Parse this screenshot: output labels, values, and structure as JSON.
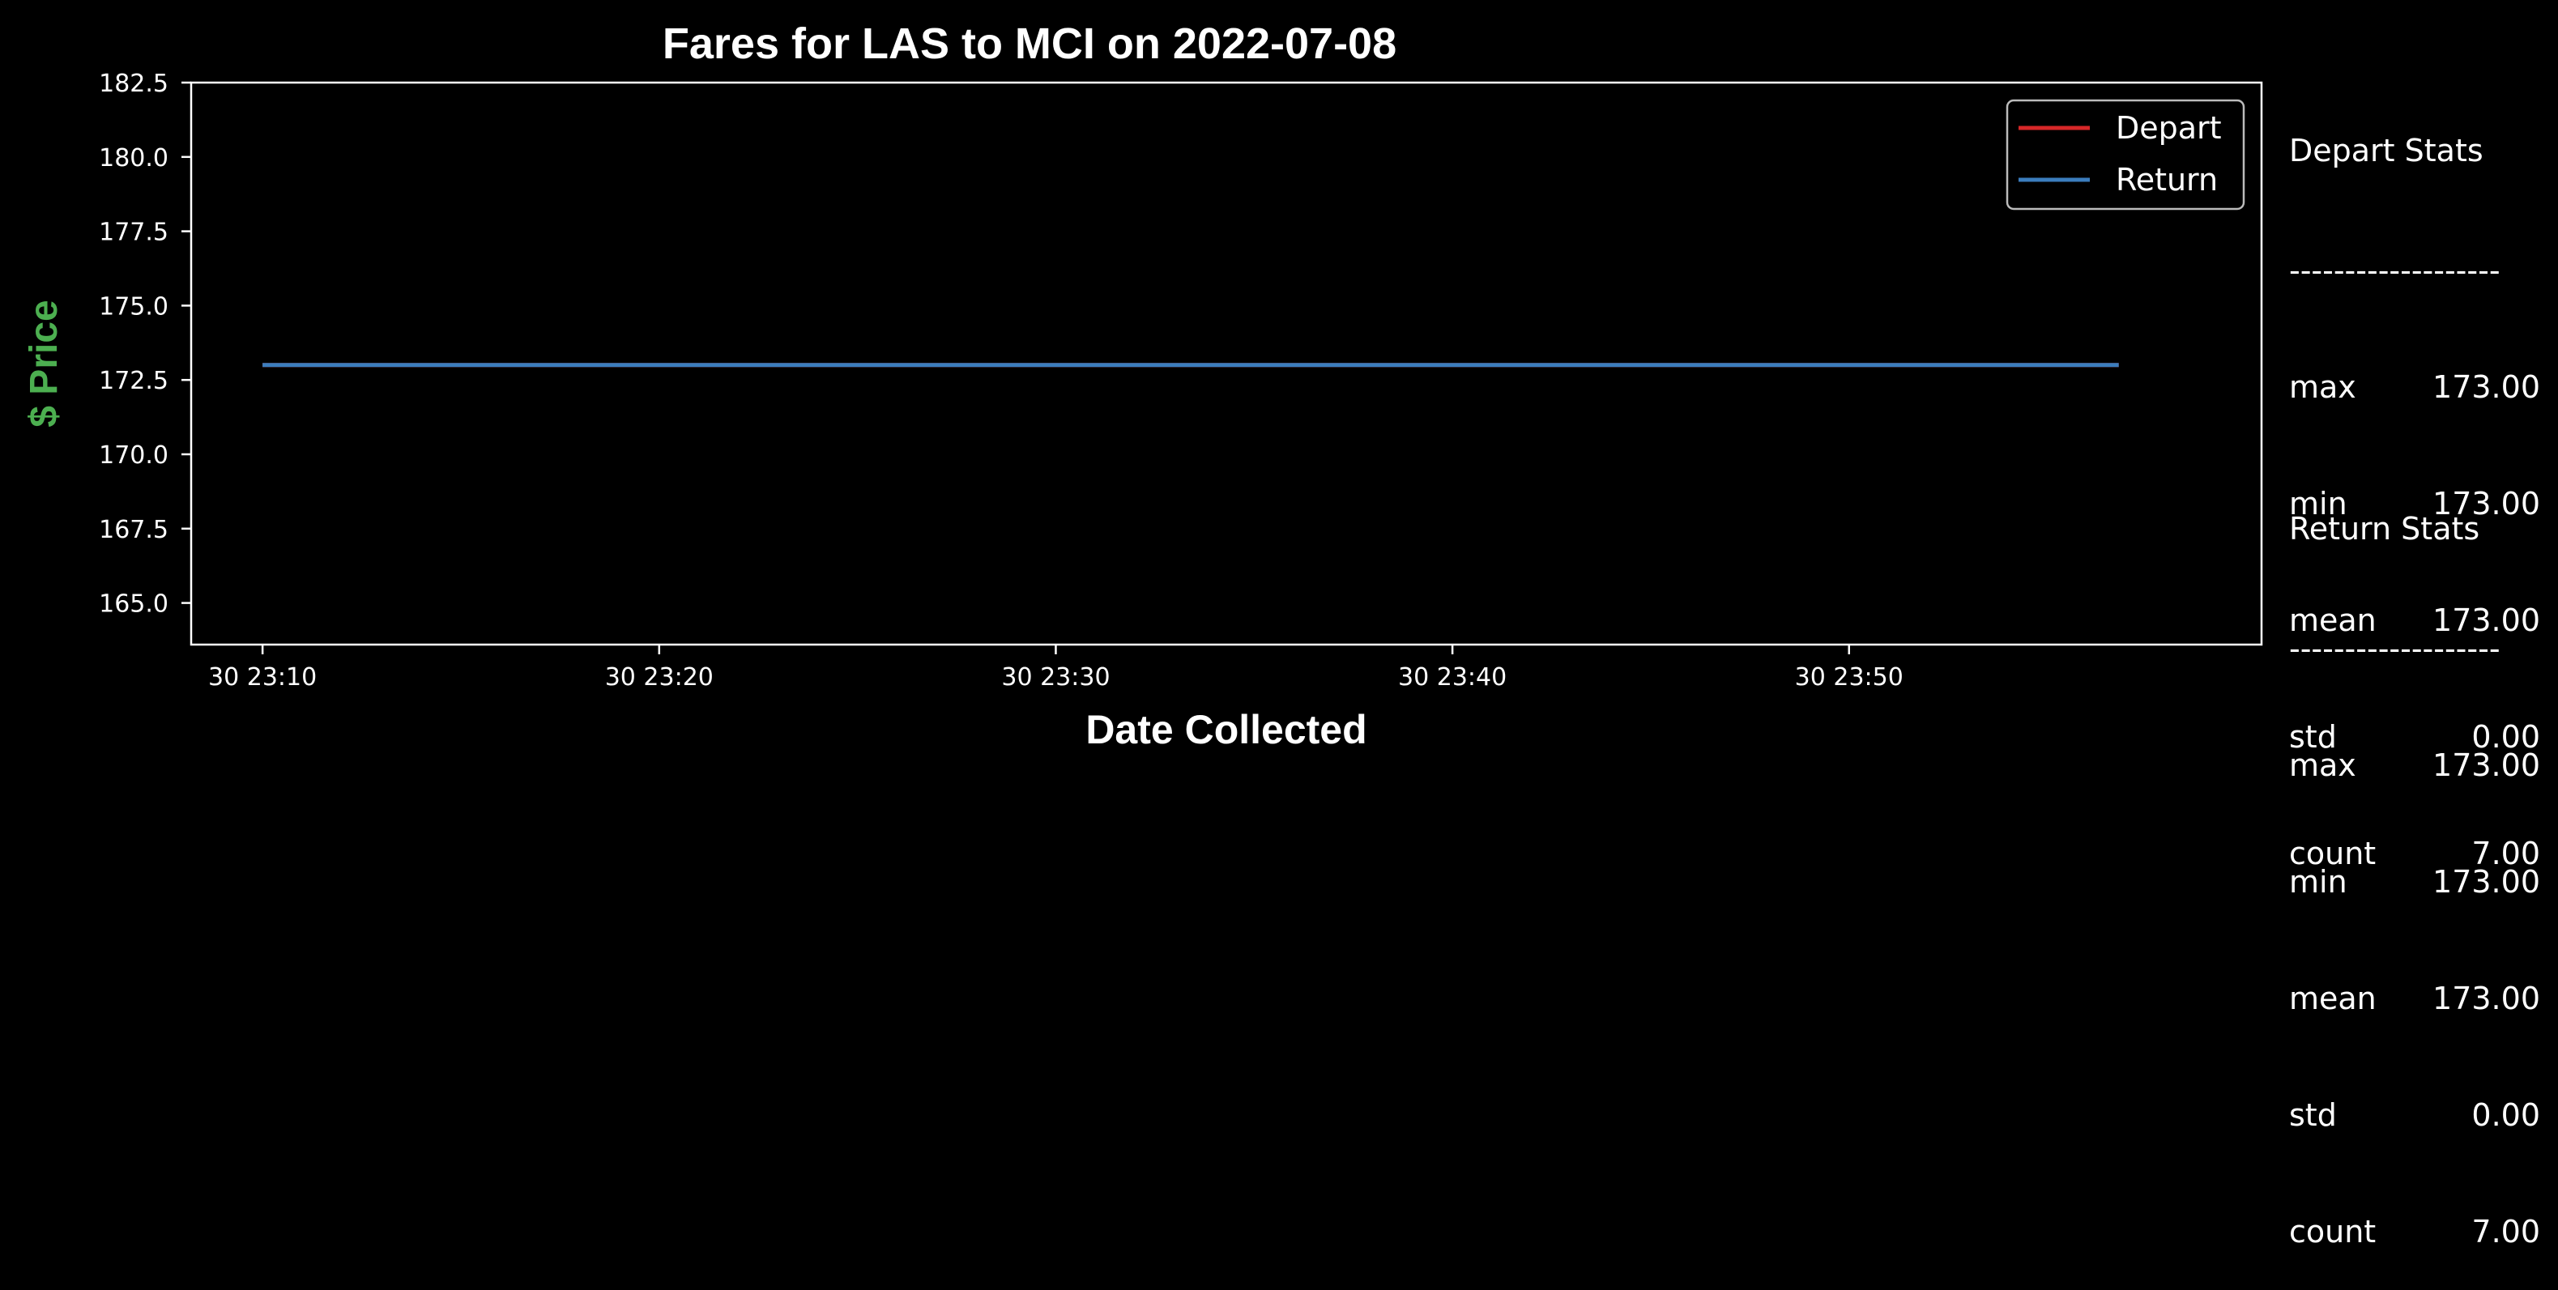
{
  "chart_data": {
    "type": "line",
    "title": "Fares for LAS to MCI on 2022-07-08",
    "xlabel": "Date Collected",
    "ylabel": "$ Price",
    "ylim": [
      163.6,
      182.5
    ],
    "yticks": [
      "165.0",
      "167.5",
      "170.0",
      "172.5",
      "175.0",
      "177.5",
      "180.0",
      "182.5"
    ],
    "ytick_values": [
      165.0,
      167.5,
      170.0,
      172.5,
      175.0,
      177.5,
      180.0,
      182.5
    ],
    "xlim_minutes": [
      8.2,
      60.4
    ],
    "xticks": [
      "30 23:10",
      "30 23:20",
      "30 23:30",
      "30 23:40",
      "30 23:50"
    ],
    "xtick_minutes": [
      10,
      20,
      30,
      40,
      50
    ],
    "x": [
      "30 23:10",
      "30 23:17",
      "30 23:25",
      "30 23:32",
      "30 23:40",
      "30 23:48",
      "30 23:57"
    ],
    "x_minutes": [
      10,
      17.8,
      25.6,
      33.4,
      41.2,
      49.0,
      56.8
    ],
    "series": [
      {
        "name": "Depart",
        "color": "#d62728",
        "values": [
          173,
          173,
          173,
          173,
          173,
          173,
          173
        ]
      },
      {
        "name": "Return",
        "color": "#3b7dbd",
        "values": [
          173,
          173,
          173,
          173,
          173,
          173,
          173
        ]
      }
    ],
    "grid": false,
    "legend": "top-right"
  },
  "colors": {
    "background": "#000000",
    "axes": "#ffffff",
    "ylabel": "#4caf50"
  },
  "stats": {
    "depart": {
      "title": "Depart Stats",
      "divider": "-------------------",
      "rows": [
        {
          "key": "max",
          "value": "173.00"
        },
        {
          "key": "min",
          "value": "173.00"
        },
        {
          "key": "mean",
          "value": "173.00"
        },
        {
          "key": "std",
          "value": "0.00"
        },
        {
          "key": "count",
          "value": "7.00"
        }
      ]
    },
    "return": {
      "title": "Return Stats",
      "divider": "-------------------",
      "rows": [
        {
          "key": "max",
          "value": "173.00"
        },
        {
          "key": "min",
          "value": "173.00"
        },
        {
          "key": "mean",
          "value": "173.00"
        },
        {
          "key": "std",
          "value": "0.00"
        },
        {
          "key": "count",
          "value": "7.00"
        }
      ]
    }
  }
}
